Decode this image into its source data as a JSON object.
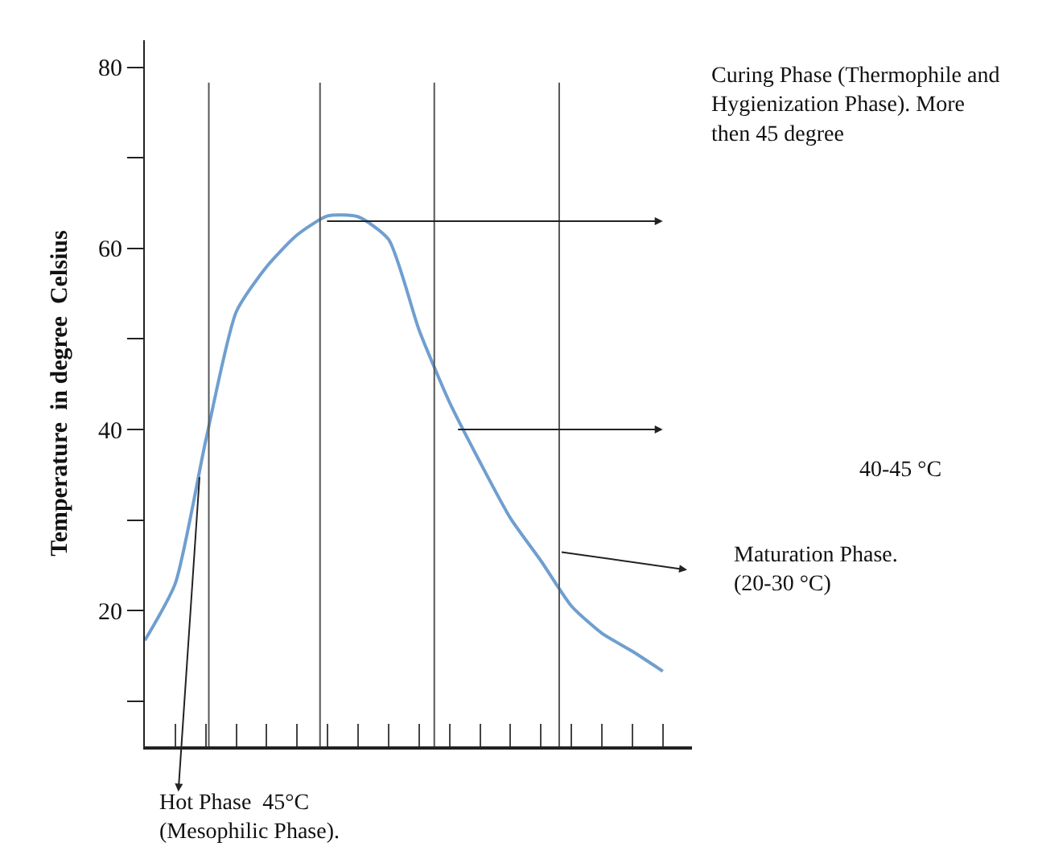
{
  "chart_data": {
    "type": "line",
    "ylabel": "Temperature  in degree  Celsius",
    "categories": [
      null,
      null,
      null,
      null,
      null,
      null,
      null,
      null,
      null,
      null,
      null,
      null,
      null,
      null,
      null,
      null,
      null,
      null
    ],
    "series": [
      {
        "color": "#6f9fcf",
        "values": [
          16.7,
          23,
          38.8,
          53,
          58,
          61.5,
          63.6,
          63.5,
          61,
          51,
          43,
          36.4,
          30.2,
          25.5,
          20.5,
          17.5,
          15.5,
          13.3
        ]
      }
    ],
    "ylim": [
      5,
      83
    ],
    "yticks": [
      {
        "value": 10,
        "label": null
      },
      20,
      {
        "value": 30,
        "label": null
      },
      40,
      {
        "value": 50,
        "label": null
      },
      60,
      {
        "value": 70,
        "label": null
      },
      80
    ],
    "tick_labels": "y",
    "annotations": [
      "Curing Phase (Thermophile and Hygienization Phase). More then 45 degree",
      "40-45 °C",
      "Maturation Phase. (20-30 °C)",
      "Hot Phase  45°C (Mesophilic Phase)."
    ],
    "marker": "none",
    "line_style": "solid"
  }
}
